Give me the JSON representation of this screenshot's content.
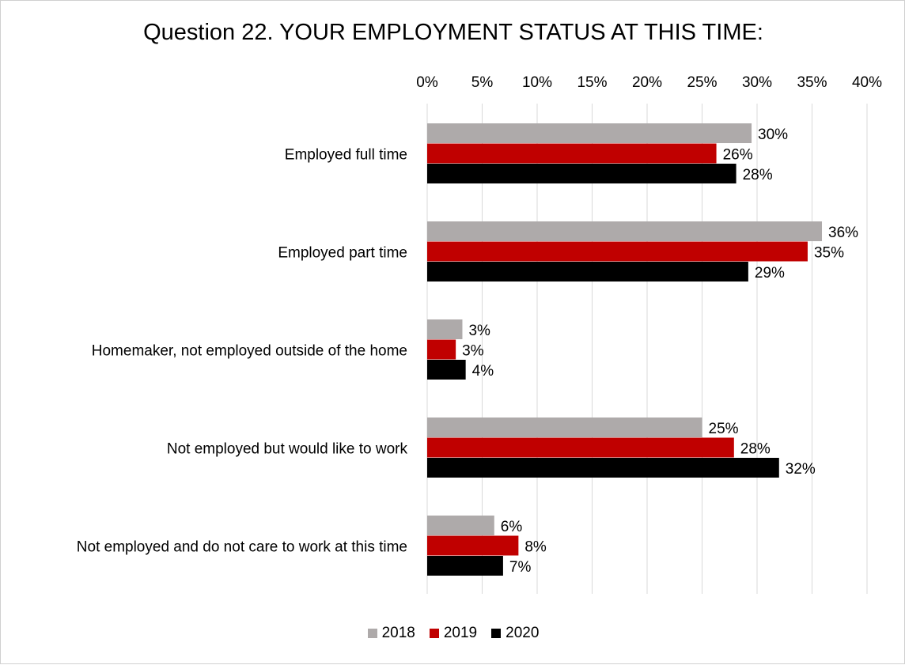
{
  "chart_data": {
    "type": "bar",
    "orientation": "horizontal",
    "title": "Question 22. YOUR EMPLOYMENT STATUS AT THIS TIME:",
    "categories": [
      "Employed full time",
      "Employed part time",
      "Homemaker, not employed outside of the home",
      "Not employed but would like to work",
      "Not employed and do not care to work at this time"
    ],
    "series": [
      {
        "name": "2018",
        "color": "#aeaaaa",
        "values": [
          29.5,
          35.9,
          3.2,
          25.0,
          6.1
        ],
        "labels": [
          "30%",
          "36%",
          "3%",
          "25%",
          "6%"
        ]
      },
      {
        "name": "2019",
        "color": "#c00000",
        "values": [
          26.3,
          34.6,
          2.6,
          27.9,
          8.3
        ],
        "labels": [
          "26%",
          "35%",
          "3%",
          "28%",
          "8%"
        ]
      },
      {
        "name": "2020",
        "color": "#000000",
        "values": [
          28.1,
          29.2,
          3.5,
          32.0,
          6.9
        ],
        "labels": [
          "28%",
          "29%",
          "4%",
          "32%",
          "7%"
        ]
      }
    ],
    "x_ticks": [
      "0%",
      "5%",
      "10%",
      "15%",
      "20%",
      "25%",
      "30%",
      "35%",
      "40%"
    ],
    "xlim": [
      0,
      40
    ],
    "x_axis_position": "top",
    "grid": true,
    "legend_position": "bottom"
  }
}
